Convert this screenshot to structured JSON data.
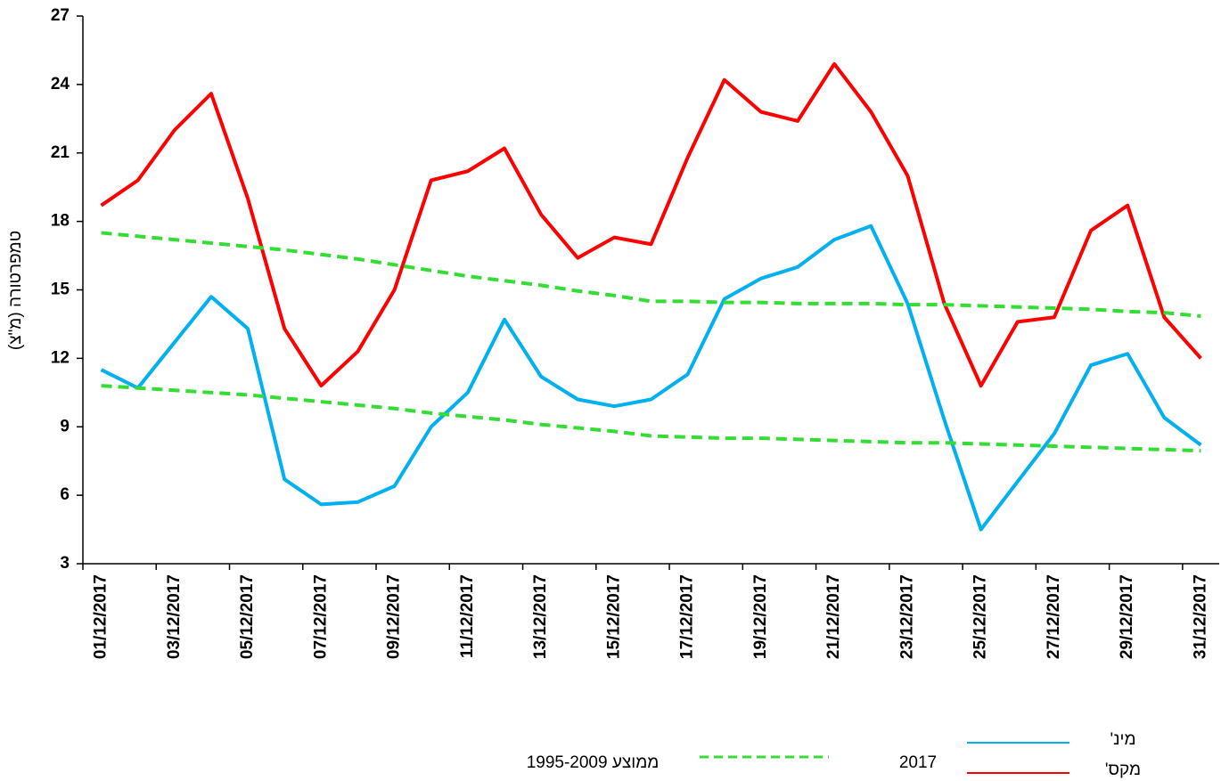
{
  "chart_data": {
    "type": "line",
    "y_label": "טמפרטורה (מ\"צ)",
    "categories": [
      "01/12/2017",
      null,
      "03/12/2017",
      null,
      "05/12/2017",
      null,
      "07/12/2017",
      null,
      "09/12/2017",
      null,
      "11/12/2017",
      null,
      "13/12/2017",
      null,
      "15/12/2017",
      null,
      "17/12/2017",
      null,
      "19/12/2017",
      null,
      "21/12/2017",
      null,
      "23/12/2017",
      null,
      "25/12/2017",
      null,
      "27/12/2017",
      null,
      "29/12/2017",
      null,
      "31/12/2017"
    ],
    "series": [
      {
        "name": "מינ'",
        "color": "#00b0f0",
        "dashed": false,
        "values": [
          11.5,
          10.7,
          12.7,
          14.7,
          13.3,
          6.7,
          5.6,
          5.7,
          6.4,
          9.0,
          10.5,
          13.7,
          11.2,
          10.2,
          9.9,
          10.2,
          11.3,
          14.6,
          15.5,
          16.0,
          17.2,
          17.8,
          14.4,
          9.3,
          4.5,
          6.6,
          8.7,
          11.7,
          12.2,
          9.4,
          8.2
        ]
      },
      {
        "name": "מקס'",
        "color": "#ff0000",
        "dashed": false,
        "values": [
          18.7,
          19.8,
          22.0,
          23.6,
          19.0,
          13.3,
          10.8,
          12.3,
          15.0,
          19.8,
          20.2,
          21.2,
          18.3,
          16.4,
          17.3,
          17.0,
          20.8,
          24.2,
          22.8,
          22.4,
          24.9,
          22.8,
          20.0,
          14.4,
          10.8,
          13.6,
          13.8,
          17.6,
          18.7,
          13.8,
          12.0
        ]
      },
      {
        "color": "#33dd33",
        "dashed": true,
        "values": [
          17.5,
          17.35,
          17.2,
          17.05,
          16.9,
          16.75,
          16.55,
          16.35,
          16.1,
          15.85,
          15.6,
          15.4,
          15.2,
          14.95,
          14.75,
          14.5,
          14.5,
          14.45,
          14.45,
          14.4,
          14.4,
          14.4,
          14.35,
          14.35,
          14.3,
          14.25,
          14.2,
          14.15,
          14.05,
          14.0,
          13.85
        ]
      },
      {
        "color": "#33dd33",
        "dashed": true,
        "values": [
          10.8,
          10.7,
          10.6,
          10.5,
          10.4,
          10.25,
          10.1,
          9.95,
          9.8,
          9.6,
          9.45,
          9.3,
          9.1,
          8.95,
          8.8,
          8.6,
          8.55,
          8.5,
          8.5,
          8.45,
          8.4,
          8.35,
          8.3,
          8.3,
          8.25,
          8.2,
          8.15,
          8.1,
          8.05,
          8.0,
          7.95
        ]
      }
    ],
    "legend_labels": [
      "2017",
      "ממוצע 1995-2009"
    ],
    "ylim": [
      3,
      27
    ],
    "yticks": [
      3,
      6,
      9,
      12,
      15,
      18,
      21,
      24,
      27
    ],
    "grid": false
  }
}
